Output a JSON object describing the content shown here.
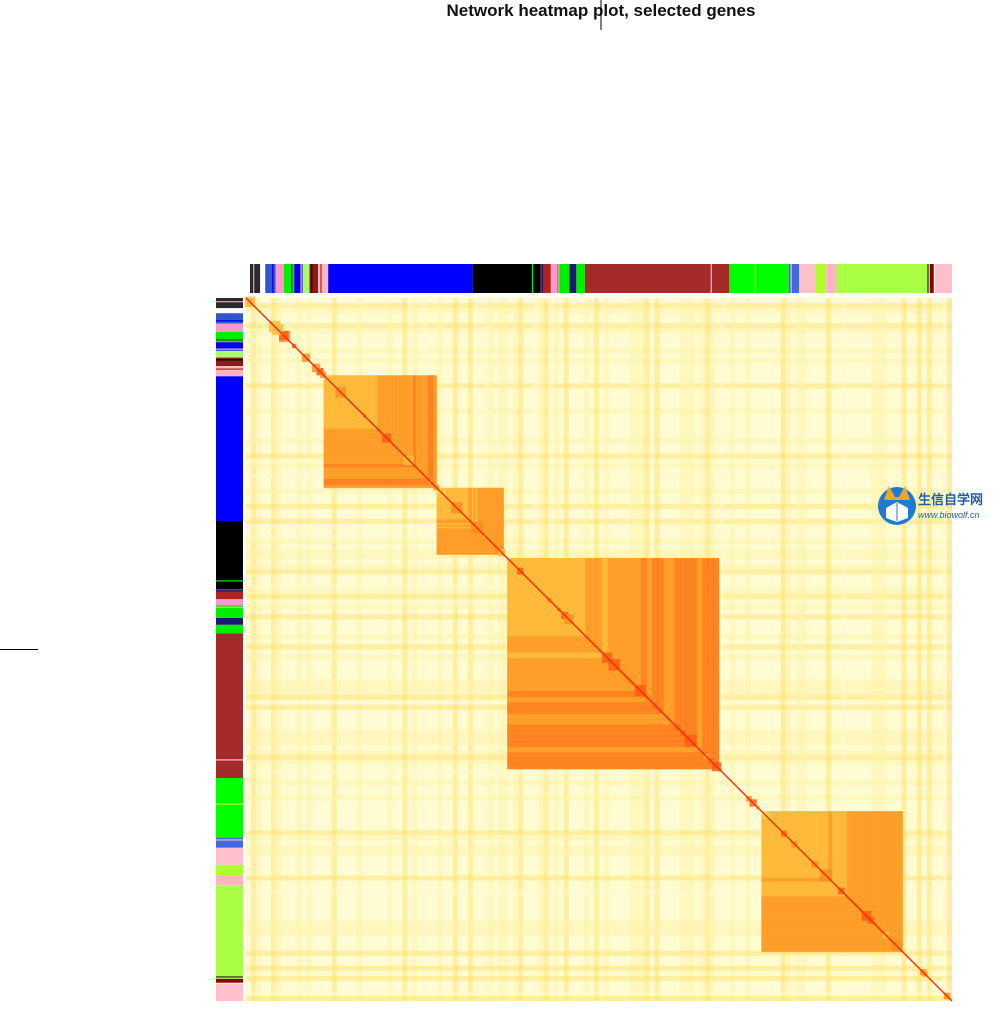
{
  "chart_data": {
    "type": "heatmap",
    "title": "Network heatmap plot, selected genes",
    "xlabel": "",
    "ylabel": "",
    "matrix": "symmetric topological overlap (TOM) of selected genes, clustered by hierarchical tree",
    "color_scale": [
      "#fffbd0",
      "#fff2a6",
      "#ffe066",
      "#ffba3a",
      "#ff8a1e",
      "#ff5a10",
      "#ff2a08"
    ],
    "modules": [
      {
        "color": "#2a2a2a",
        "fraction": 0.012
      },
      {
        "color": "#ffffff",
        "fraction": 0.006
      },
      {
        "color": "#3355cc",
        "fraction": 0.012
      },
      {
        "color": "#ff99cc",
        "fraction": 0.01
      },
      {
        "color": "#00ee00",
        "fraction": 0.012
      },
      {
        "color": "#0000ee",
        "fraction": 0.01
      },
      {
        "color": "#aaff66",
        "fraction": 0.008
      },
      {
        "color": "#8b1a1a",
        "fraction": 0.01
      },
      {
        "color": "#ffb6c1",
        "fraction": 0.012
      },
      {
        "color": "#0000ff",
        "fraction": 0.17
      },
      {
        "color": "#000000",
        "fraction": 0.08
      },
      {
        "color": "#b22222",
        "fraction": 0.012
      },
      {
        "color": "#ff99cc",
        "fraction": 0.01
      },
      {
        "color": "#00ee00",
        "fraction": 0.012
      },
      {
        "color": "#191970",
        "fraction": 0.008
      },
      {
        "color": "#00ee00",
        "fraction": 0.01
      },
      {
        "color": "#a52a2a",
        "fraction": 0.17
      },
      {
        "color": "#00ff00",
        "fraction": 0.07
      },
      {
        "color": "#4169e1",
        "fraction": 0.012
      },
      {
        "color": "#ffc0cb",
        "fraction": 0.02
      },
      {
        "color": "#adff2f",
        "fraction": 0.012
      },
      {
        "color": "#ffb6c1",
        "fraction": 0.012
      },
      {
        "color": "#aaff44",
        "fraction": 0.11
      },
      {
        "color": "#8b0000",
        "fraction": 0.006
      },
      {
        "color": "#ffc0cb",
        "fraction": 0.02
      }
    ],
    "blocks": [
      {
        "start": 0.11,
        "end": 0.27,
        "intensity": 0.85
      },
      {
        "start": 0.27,
        "end": 0.365,
        "intensity": 0.8
      },
      {
        "start": 0.37,
        "end": 0.67,
        "intensity": 0.95
      },
      {
        "start": 0.73,
        "end": 0.93,
        "intensity": 0.8
      }
    ],
    "grid": false,
    "legend": "none"
  },
  "watermark": {
    "name": "生信自学网",
    "url": "www.biowolf.cn"
  }
}
